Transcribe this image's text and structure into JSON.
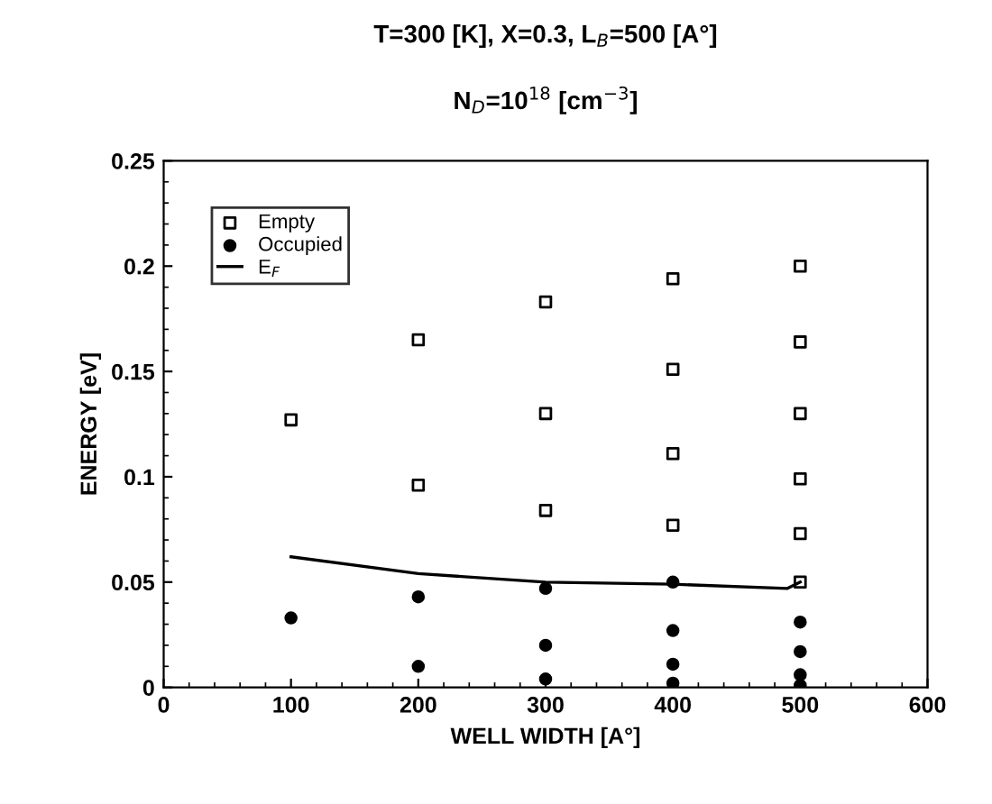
{
  "chart_data": {
    "type": "scatter",
    "title": "T=300 [K], X=0.3, L$_{B}$=500 [A°]",
    "subtitle": "N$_{D}$=10$^{18}$ [cm$^{−3}$]",
    "xlabel": "WELL WIDTH [A°]",
    "ylabel": "ENERGY [eV]",
    "xlim": [
      0,
      600
    ],
    "xticks": [
      0,
      100,
      200,
      300,
      400,
      500,
      600
    ],
    "ylim": [
      0,
      0.25
    ],
    "yticks": [
      0,
      0.05,
      0.1,
      0.15,
      0.2,
      0.25
    ],
    "grid": false,
    "legend": "top left",
    "series": [
      {
        "name": "Empty",
        "marker": "square",
        "color": "#000000",
        "x": [
          100,
          200,
          200,
          300,
          300,
          300,
          400,
          400,
          400,
          400,
          500,
          500,
          500,
          500,
          500,
          500
        ],
        "values": [
          0.127,
          0.165,
          0.096,
          0.183,
          0.13,
          0.084,
          0.194,
          0.151,
          0.111,
          0.077,
          0.2,
          0.164,
          0.13,
          0.099,
          0.073,
          0.05
        ]
      },
      {
        "name": "Occupied",
        "marker": "circle",
        "color": "#000000",
        "x": [
          100,
          200,
          200,
          300,
          300,
          300,
          400,
          400,
          400,
          400,
          500,
          500,
          500,
          500
        ],
        "values": [
          0.033,
          0.043,
          0.01,
          0.047,
          0.02,
          0.004,
          0.05,
          0.027,
          0.011,
          0.002,
          0.031,
          0.017,
          0.006,
          0.001
        ]
      },
      {
        "name": "E$_{F}$",
        "type": "line",
        "marker": "none",
        "color": "#000000",
        "x": [
          100,
          200,
          300,
          400,
          490,
          500
        ],
        "values": [
          0.062,
          0.054,
          0.05,
          0.049,
          0.047,
          0.05
        ]
      }
    ]
  }
}
